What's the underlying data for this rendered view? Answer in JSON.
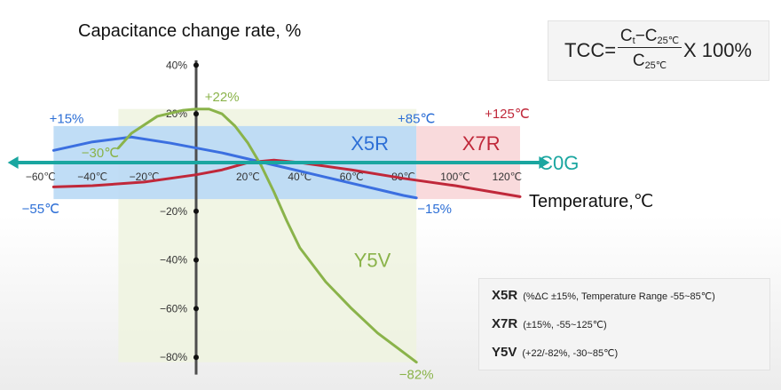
{
  "title": "Capacitance change rate, %",
  "formula": {
    "lhs": "TCC=",
    "num_a": "C",
    "num_a_sub": "t",
    "num_minus": "−C",
    "num_b_sub": "25℃",
    "den": "C",
    "den_sub": "25℃",
    "rhs": "X 100%"
  },
  "legend": [
    {
      "code": "X5R",
      "desc": "(%ΔC ±15%, Temperature Range -55~85℃)"
    },
    {
      "code": "X7R",
      "desc": "(±15%, -55~125℃)"
    },
    {
      "code": "Y5V",
      "desc": "(+22/-82%, -30~85℃)"
    }
  ],
  "chart_data": {
    "type": "line",
    "xlabel": "Temperature,℃",
    "ylabel": "Capacitance change rate, %",
    "xlim": [
      -70,
      135
    ],
    "ylim": [
      -82,
      42
    ],
    "x_ticks": [
      -60,
      -40,
      -20,
      20,
      40,
      60,
      80,
      100,
      120
    ],
    "x_tick_labels": [
      "−60℃",
      "−40℃",
      "−20℃",
      "20℃",
      "40℃",
      "60℃",
      "80℃",
      "100℃",
      "120℃"
    ],
    "y_ticks": [
      40,
      20,
      -20,
      -40,
      -60,
      -80
    ],
    "y_tick_labels": [
      "40%",
      "20%",
      "−20%",
      "−40%",
      "−60%",
      "−80%"
    ],
    "bands": [
      {
        "name": "X5R",
        "x": [
          -55,
          85
        ],
        "y": [
          -15,
          15
        ],
        "color": "#b9d9f5"
      },
      {
        "name": "X7R",
        "x": [
          85,
          125
        ],
        "y": [
          -15,
          15
        ],
        "color": "#f8d6d8"
      },
      {
        "name": "Y5V",
        "x": [
          -30,
          85
        ],
        "y": [
          -82,
          22
        ],
        "color": "#eef3df"
      }
    ],
    "band_labels": [
      {
        "text": "X5R",
        "x": 67,
        "y": 8,
        "color": "#2d6fd6"
      },
      {
        "text": "X7R",
        "x": 110,
        "y": 8,
        "color": "#c0283a"
      },
      {
        "text": "C0G",
        "x": 140,
        "y": 0,
        "color": "#1aa6a0"
      },
      {
        "text": "Y5V",
        "x": 68,
        "y": -40,
        "color": "#8ab34a"
      }
    ],
    "annotations": [
      {
        "text": "+15%",
        "x": -50,
        "y": 18,
        "color": "#2d6fd6"
      },
      {
        "text": "−55℃",
        "x": -60,
        "y": -19,
        "color": "#2d6fd6"
      },
      {
        "text": "−15%",
        "x": 92,
        "y": -19,
        "color": "#2d6fd6"
      },
      {
        "text": "+85℃",
        "x": 85,
        "y": 18,
        "color": "#2d6fd6"
      },
      {
        "text": "+125℃",
        "x": 120,
        "y": 20,
        "color": "#c0283a"
      },
      {
        "text": "−30℃",
        "x": -37,
        "y": 4,
        "color": "#8ab34a"
      },
      {
        "text": "+22%",
        "x": 10,
        "y": 27,
        "color": "#8ab34a"
      },
      {
        "text": "−82%",
        "x": 85,
        "y": -87,
        "color": "#8ab34a"
      }
    ],
    "series": [
      {
        "name": "X5R",
        "color": "#3b6fe0",
        "x": [
          -55,
          -40,
          -25,
          -10,
          0,
          10,
          20,
          30,
          40,
          50,
          60,
          70,
          80,
          85
        ],
        "y": [
          5,
          8.5,
          10.5,
          8,
          6,
          4,
          1.5,
          -1,
          -3.5,
          -6,
          -8.5,
          -11,
          -13.5,
          -14.5
        ]
      },
      {
        "name": "X7R",
        "color": "#c0283a",
        "x": [
          -55,
          -40,
          -20,
          0,
          10,
          20,
          30,
          40,
          60,
          80,
          100,
          125
        ],
        "y": [
          -10,
          -9.5,
          -8,
          -5,
          -3,
          0,
          1,
          0,
          -3,
          -6.5,
          -9.5,
          -14
        ]
      },
      {
        "name": "Y5V",
        "color": "#8ab34a",
        "x": [
          -30,
          -25,
          -15,
          -5,
          0,
          5,
          10,
          15,
          20,
          25,
          30,
          35,
          40,
          50,
          60,
          70,
          80,
          85
        ],
        "y": [
          6,
          12,
          19,
          21.5,
          22,
          22,
          20,
          15,
          8,
          -1,
          -12,
          -24,
          -35,
          -49,
          -60,
          -70,
          -78,
          -82
        ]
      },
      {
        "name": "C0G",
        "color": "#1aa6a0",
        "x": [
          -70,
          133
        ],
        "y": [
          0,
          0
        ]
      }
    ]
  }
}
